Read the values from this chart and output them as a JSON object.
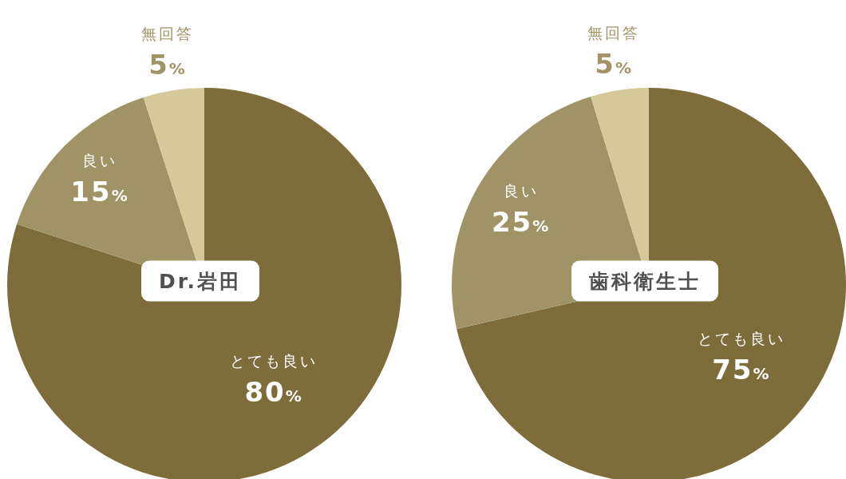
{
  "chart_data": [
    {
      "type": "pie",
      "title": "Dr.岩田",
      "categories": [
        "とても良い",
        "良い",
        "無回答"
      ],
      "values": [
        80,
        15,
        5
      ],
      "colors": [
        "#7f6c3b",
        "#a09467",
        "#d6c999"
      ],
      "value_labels": [
        "80%",
        "15%",
        "5%"
      ]
    },
    {
      "type": "pie",
      "title": "歯科衛生士",
      "categories": [
        "とても良い",
        "良い",
        "無回答"
      ],
      "values": [
        75,
        25,
        5
      ],
      "colors": [
        "#7f6c3b",
        "#a09467",
        "#d6c999"
      ],
      "value_labels": [
        "75%",
        "25%",
        "5%"
      ]
    }
  ]
}
